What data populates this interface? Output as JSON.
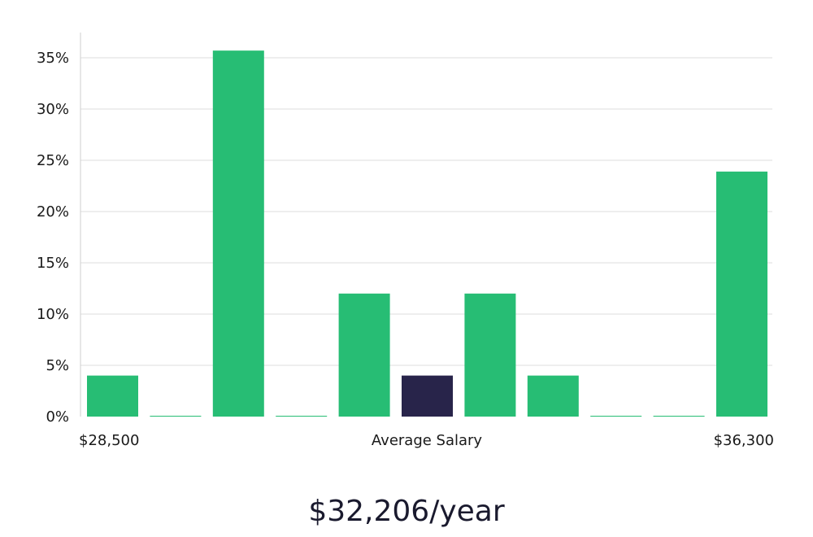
{
  "chart_data": {
    "type": "bar",
    "xlabel": "Average Salary",
    "x_min_label": "$28,500",
    "x_max_label": "$36,300",
    "ylim": [
      0,
      37.5
    ],
    "yticks": [
      0,
      5,
      10,
      15,
      20,
      25,
      30,
      35
    ],
    "ytick_labels": [
      "0%",
      "5%",
      "10%",
      "15%",
      "20%",
      "25%",
      "30%",
      "35%"
    ],
    "values": [
      4,
      0,
      35.7,
      0,
      12,
      4,
      12,
      4,
      0,
      0,
      23.9
    ],
    "highlight_index": 5,
    "grid": true
  },
  "colors": {
    "bar": "#27bd74",
    "highlight": "#28244a",
    "grid": "#dedede",
    "axis": "#cfcfcf"
  },
  "summary": {
    "average_salary_label": "$32,206/year"
  }
}
